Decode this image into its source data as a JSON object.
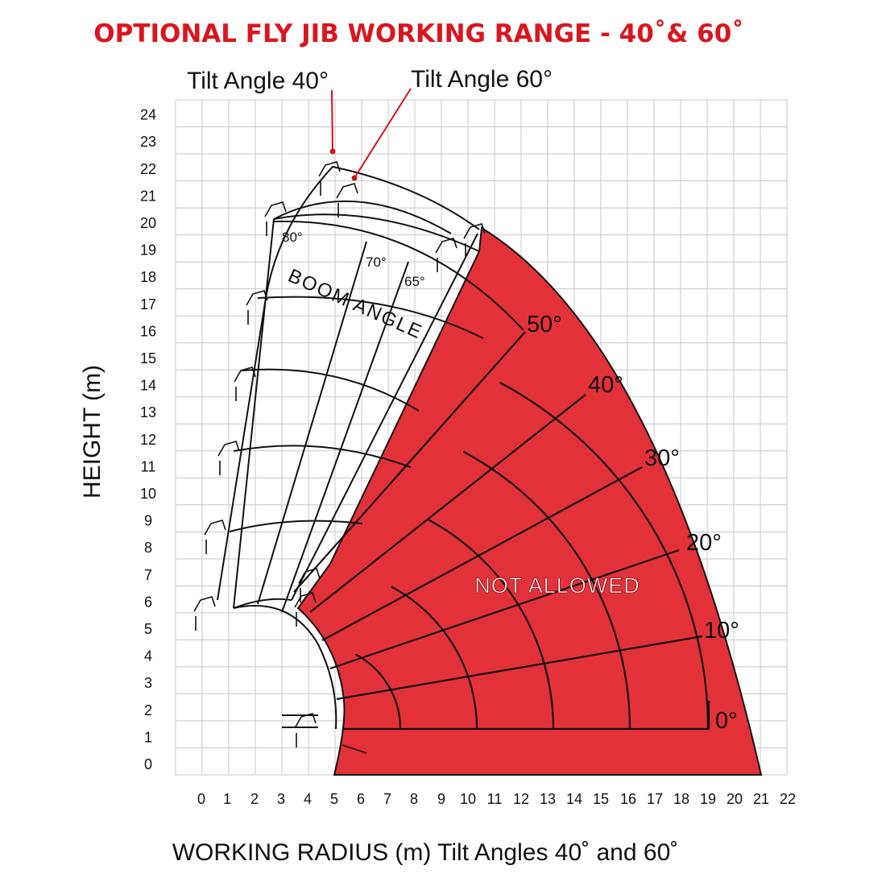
{
  "title": "OPTIONAL FLY JIB WORKING RANGE - 40˚& 60˚",
  "callouts": {
    "tilt_40": "Tilt Angle 40°",
    "tilt_60": "Tilt Angle 60°"
  },
  "axes": {
    "y_label": "HEIGHT (m)",
    "x_label": "WORKING RADIUS (m)  Tilt Angles 40˚ and 60˚",
    "x_ticks": [
      "0",
      "1",
      "2",
      "3",
      "4",
      "5",
      "6",
      "7",
      "8",
      "9",
      "10",
      "11",
      "12",
      "13",
      "14",
      "15",
      "16",
      "17",
      "18",
      "19",
      "20",
      "21",
      "22"
    ],
    "y_ticks": [
      "0",
      "1",
      "2",
      "3",
      "4",
      "5",
      "6",
      "7",
      "8",
      "9",
      "10",
      "11",
      "12",
      "13",
      "14",
      "15",
      "16",
      "17",
      "18",
      "19",
      "20",
      "21",
      "22",
      "23",
      "24"
    ]
  },
  "boom_angle_text": "BOOM ANGLE",
  "boom_angles_small": [
    "80°",
    "70°",
    "65°"
  ],
  "region_angles": [
    "50°",
    "40°",
    "30°",
    "20°",
    "10°",
    "0°"
  ],
  "region_label": "NOT ALLOWED",
  "colors": {
    "title_red": "#d9161f",
    "region_red": "#e3313a",
    "grid": "#c8c8c8",
    "callout_red": "#d0141c",
    "line": "#111111"
  }
}
